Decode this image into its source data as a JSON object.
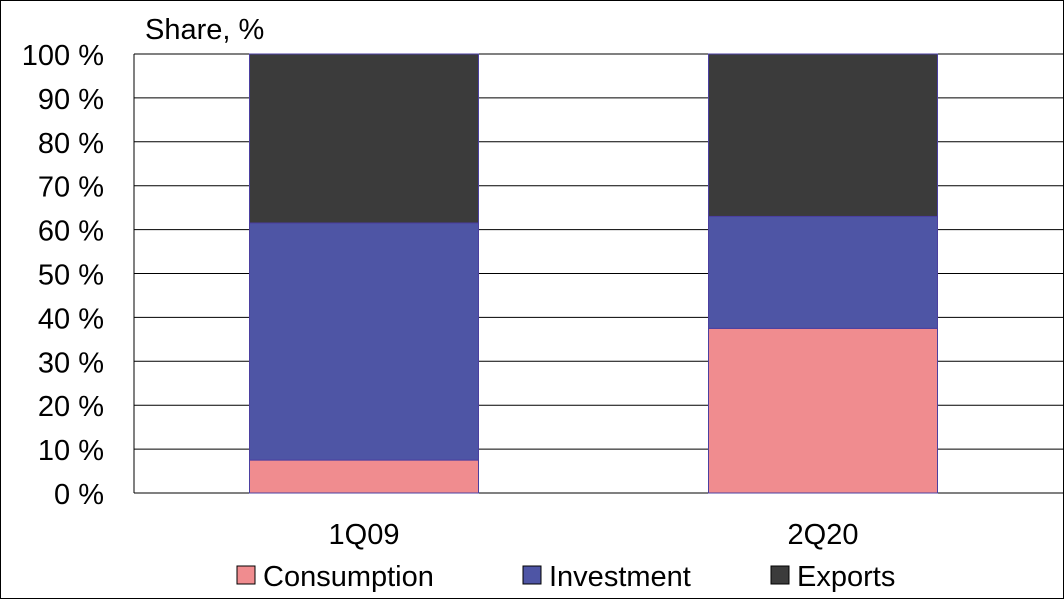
{
  "chart_data": {
    "type": "bar",
    "stacked": true,
    "percent": true,
    "ylabel": "Share, %",
    "ylim": [
      0,
      100
    ],
    "yticks": [
      0,
      10,
      20,
      30,
      40,
      50,
      60,
      70,
      80,
      90,
      100
    ],
    "ytick_labels": [
      "0 %",
      "10 %",
      "20 %",
      "30 %",
      "40 %",
      "50 %",
      "60 %",
      "70 %",
      "80 %",
      "90 %",
      "100 %"
    ],
    "categories": [
      "1Q09",
      "2Q20"
    ],
    "series": [
      {
        "name": "Consumption",
        "values": [
          7.5,
          37.5
        ],
        "color": "#f08c8f"
      },
      {
        "name": "Investment",
        "values": [
          54,
          25.5
        ],
        "color": "#4e55a5"
      },
      {
        "name": "Exports",
        "values": [
          38.5,
          37
        ],
        "color": "#3b3b3b"
      }
    ],
    "grid": true,
    "legend": "bottom"
  }
}
